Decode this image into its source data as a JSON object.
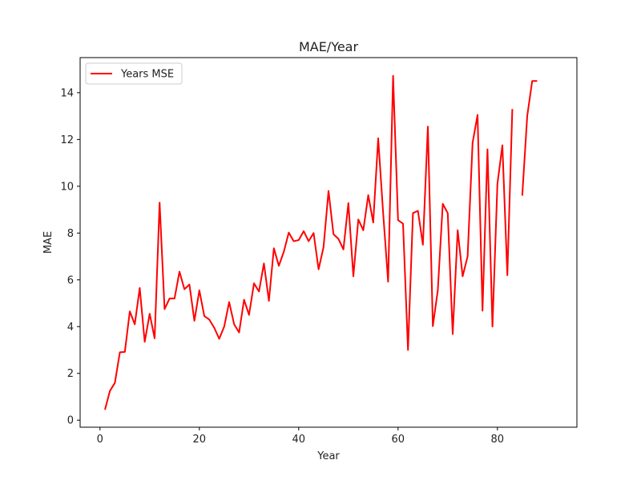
{
  "chart_data": {
    "type": "line",
    "title": "MAE/Year",
    "xlabel": "Year",
    "ylabel": "MAE",
    "xlim": [
      -4,
      96
    ],
    "ylim": [
      -0.3,
      15.5
    ],
    "xticks": [
      0,
      20,
      40,
      60,
      80
    ],
    "yticks": [
      0,
      2,
      4,
      6,
      8,
      10,
      12,
      14
    ],
    "grid": false,
    "legend": "top-left",
    "colors": {
      "line": "#ff0000"
    },
    "series": [
      {
        "name": "Years MSE",
        "x": [
          1,
          2,
          3,
          4,
          5,
          6,
          7,
          8,
          9,
          10,
          11,
          12,
          13,
          14,
          15,
          16,
          17,
          18,
          19,
          20,
          21,
          22,
          23,
          24,
          25,
          26,
          27,
          28,
          29,
          30,
          31,
          32,
          33,
          34,
          35,
          36,
          37,
          38,
          39,
          40,
          41,
          42,
          43,
          44,
          45,
          46,
          47,
          48,
          49,
          50,
          51,
          52,
          53,
          54,
          55,
          56,
          57,
          58,
          59,
          60,
          61,
          62,
          63,
          64,
          65,
          66,
          67,
          68,
          69,
          70,
          71,
          72,
          73,
          74,
          75,
          76,
          77,
          78,
          79,
          80,
          81,
          82,
          83,
          84,
          85,
          86,
          87,
          88
        ],
        "y": [
          0.45,
          1.25,
          1.6,
          2.9,
          2.92,
          4.65,
          4.1,
          5.65,
          3.35,
          4.55,
          3.5,
          9.3,
          4.75,
          5.2,
          5.2,
          6.35,
          5.6,
          5.8,
          4.25,
          5.55,
          4.45,
          4.3,
          3.95,
          3.48,
          4.0,
          5.05,
          4.1,
          3.75,
          5.15,
          4.5,
          5.85,
          5.5,
          6.7,
          5.1,
          7.35,
          6.6,
          7.2,
          8.02,
          7.65,
          7.7,
          8.08,
          7.65,
          8.0,
          6.45,
          7.4,
          9.8,
          7.95,
          7.75,
          7.3,
          9.28,
          6.15,
          8.58,
          8.12,
          9.62,
          8.45,
          12.05,
          8.85,
          5.92,
          14.72,
          8.55,
          8.4,
          3.0,
          8.85,
          8.95,
          7.5,
          12.55,
          4.02,
          5.55,
          9.25,
          8.85,
          3.68,
          8.12,
          6.15,
          7.0,
          11.85,
          13.05,
          4.68,
          11.58,
          4.0,
          10.1,
          11.75,
          6.2,
          13.3,
          null,
          9.6,
          13.0,
          14.5,
          14.5
        ]
      }
    ]
  }
}
